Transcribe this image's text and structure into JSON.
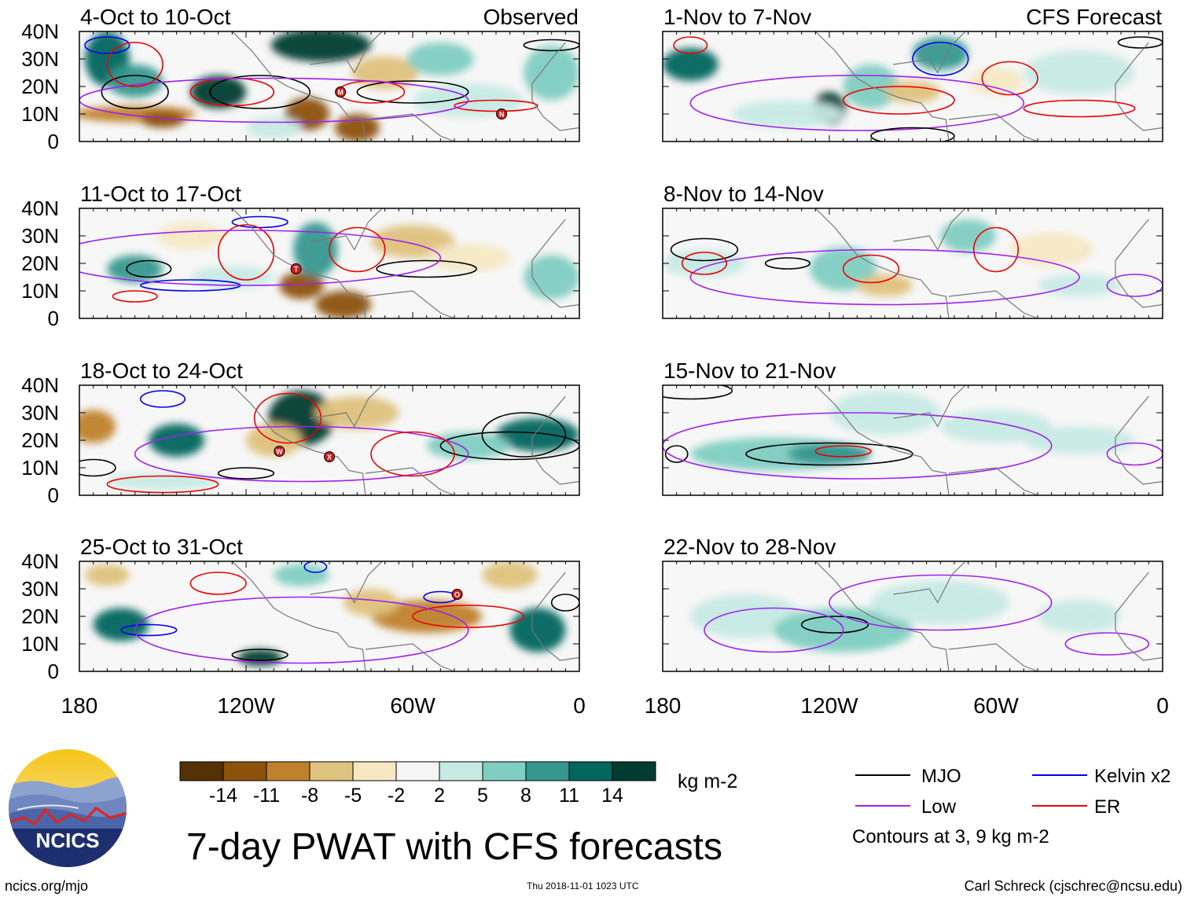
{
  "chart_data": {
    "type": "heatmap",
    "title": "7-day PWAT with CFS forecasts",
    "region": {
      "lon_range": [
        180,
        0
      ],
      "lat_range": [
        0,
        40
      ],
      "x_ticks": [
        "180",
        "120W",
        "60W",
        "0"
      ],
      "y_ticks": [
        "40N",
        "30N",
        "20N",
        "10N",
        "0"
      ]
    },
    "columns": [
      {
        "label": "Observed",
        "panels": [
          {
            "period": "4-Oct to 10-Oct",
            "storms": [
              {
                "label": "M",
                "lon": -86,
                "lat": 18
              },
              {
                "label": "N",
                "lon": -28,
                "lat": 10
              }
            ]
          },
          {
            "period": "11-Oct to 17-Oct",
            "storms": [
              {
                "label": "T",
                "lon": -102,
                "lat": 18
              }
            ]
          },
          {
            "period": "18-Oct to 24-Oct",
            "storms": [
              {
                "label": "W",
                "lon": -108,
                "lat": 16
              },
              {
                "label": "X",
                "lon": -90,
                "lat": 14
              }
            ]
          },
          {
            "period": "25-Oct to 31-Oct",
            "storms": [
              {
                "label": "O",
                "lon": -44,
                "lat": 28
              }
            ]
          }
        ]
      },
      {
        "label": "CFS Forecast",
        "panels": [
          {
            "period": "1-Nov to 7-Nov",
            "storms": []
          },
          {
            "period": "8-Nov to 14-Nov",
            "storms": []
          },
          {
            "period": "15-Nov to 21-Nov",
            "storms": []
          },
          {
            "period": "22-Nov to 28-Nov",
            "storms": []
          }
        ]
      }
    ],
    "colorbar": {
      "ticks": [
        "-14",
        "-11",
        "-8",
        "-5",
        "-2",
        "2",
        "5",
        "8",
        "11",
        "14"
      ],
      "colors": [
        "#543005",
        "#8c510a",
        "#bf812d",
        "#dfc27d",
        "#f6e8c3",
        "#f5f5f5",
        "#c7eae5",
        "#80cdc1",
        "#35978f",
        "#01665e",
        "#003c30"
      ],
      "units": "kg m-2"
    },
    "legend": {
      "items": [
        {
          "label": "MJO",
          "color": "#000000"
        },
        {
          "label": "Kelvin x2",
          "color": "#0000ee"
        },
        {
          "label": "Low",
          "color": "#a020f0"
        },
        {
          "label": "ER",
          "color": "#ee0000"
        }
      ],
      "note": "Contours at 3, 9 kg m-2"
    }
  },
  "footer": {
    "logo_text": "NCICS",
    "url": "ncics.org/mjo",
    "timestamp": "Thu 2018-11-01 1023 UTC",
    "credit": "Carl Schreck (cjschrec@ncsu.edu)"
  }
}
